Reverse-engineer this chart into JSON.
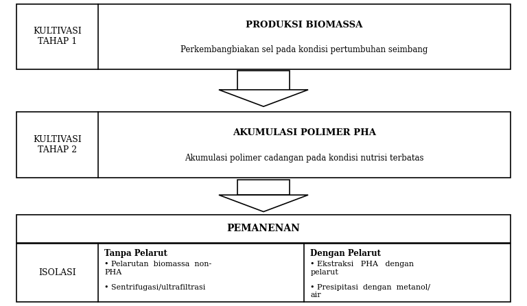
{
  "bg_color": "#ffffff",
  "line_color": "#000000",
  "text_color": "#000000",
  "fig_width": 7.68,
  "fig_height": 4.46,
  "box1_label_title": "KULTIVASI\nTAHAP 1",
  "box1_main_bold": "PRODUKSI BIOMASSA",
  "box1_main_sub": "Perkembangbiakan sel pada kondisi pertumbuhan seimbang",
  "box2_label_title": "KULTIVASI\nTAHAP 2",
  "box2_main_bold": "AKUMULASI POLIMER PHA",
  "box2_main_sub": "Akumulasi polimer cadangan pada kondisi nutrisi terbatas",
  "box3_main_bold": "PEMANENAN",
  "box4_label": "ISOLASI",
  "box4_col1_title": "Tanpa Pelarut",
  "box4_col1_items": [
    "Pelarutan  biomassa  non-\nPHA",
    "Sentrifugasi/ultrafiltrasi"
  ],
  "box4_col2_title": "Dengan Pelarut",
  "box4_col2_items": [
    "Ekstraksi   PHA   dengan\npelarut",
    "Presipitasi  dengan  metanol/\nair"
  ]
}
